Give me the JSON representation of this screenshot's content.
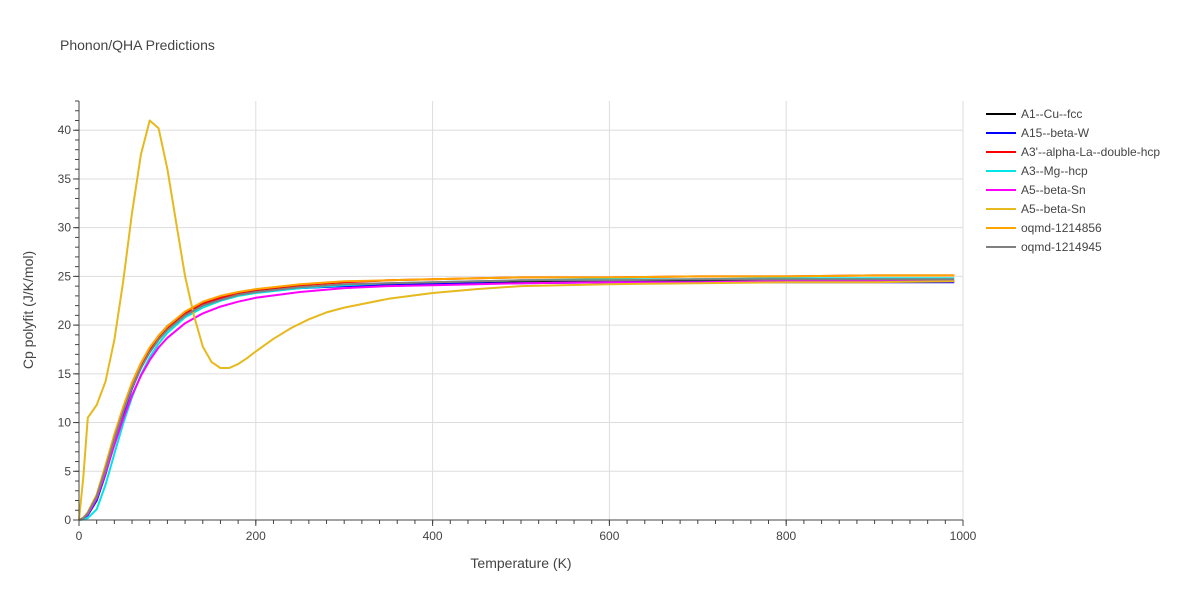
{
  "chart_data": {
    "type": "line",
    "title": "Phonon/QHA Predictions",
    "xlabel": "Temperature (K)",
    "ylabel": "Cp polyfit (J/K/mol)",
    "xlim": [
      0,
      1000
    ],
    "ylim": [
      0,
      43
    ],
    "x_ticks": [
      0,
      200,
      400,
      600,
      800,
      1000
    ],
    "y_ticks": [
      0,
      5,
      10,
      15,
      20,
      25,
      30,
      35,
      40
    ],
    "grid": true,
    "legend_position": "right",
    "series": [
      {
        "name": "A1--Cu--fcc",
        "color": "#000000",
        "x": [
          0,
          5,
          10,
          20,
          30,
          40,
          50,
          60,
          70,
          80,
          90,
          100,
          120,
          140,
          160,
          180,
          200,
          250,
          300,
          350,
          400,
          450,
          500,
          600,
          700,
          800,
          900,
          990
        ],
        "y": [
          0,
          0.2,
          0.6,
          2.3,
          5.1,
          8.3,
          11.3,
          13.9,
          16.0,
          17.6,
          18.9,
          19.9,
          21.3,
          22.2,
          22.8,
          23.2,
          23.5,
          23.9,
          24.1,
          24.2,
          24.3,
          24.4,
          24.4,
          24.5,
          24.5,
          24.5,
          24.5,
          24.5
        ]
      },
      {
        "name": "A15--beta-W",
        "color": "#0000ff",
        "x": [
          0,
          5,
          10,
          20,
          30,
          40,
          50,
          60,
          70,
          80,
          90,
          100,
          120,
          140,
          160,
          180,
          200,
          250,
          300,
          350,
          400,
          450,
          500,
          600,
          700,
          800,
          900,
          990
        ],
        "y": [
          0,
          0.15,
          0.5,
          2.0,
          4.7,
          7.9,
          10.9,
          13.5,
          15.6,
          17.3,
          18.6,
          19.6,
          21.1,
          22.1,
          22.7,
          23.1,
          23.4,
          23.8,
          24.0,
          24.1,
          24.2,
          24.3,
          24.3,
          24.4,
          24.4,
          24.4,
          24.4,
          24.4
        ]
      },
      {
        "name": "A3'--alpha-La--double-hcp",
        "color": "#ff0000",
        "x": [
          0,
          5,
          10,
          20,
          30,
          40,
          50,
          60,
          70,
          80,
          90,
          100,
          120,
          140,
          160,
          180,
          200,
          250,
          300,
          350,
          400,
          450,
          500,
          600,
          700,
          800,
          900,
          990
        ],
        "y": [
          0,
          0.2,
          0.7,
          2.5,
          5.4,
          8.5,
          11.3,
          13.8,
          15.8,
          17.4,
          18.7,
          19.7,
          21.2,
          22.2,
          22.8,
          23.3,
          23.6,
          24.1,
          24.4,
          24.6,
          24.7,
          24.8,
          24.9,
          24.9,
          25.0,
          25.0,
          25.1,
          25.1
        ]
      },
      {
        "name": "A3--Mg--hcp",
        "color": "#00e5e5",
        "x": [
          0,
          5,
          10,
          20,
          30,
          40,
          50,
          60,
          70,
          80,
          90,
          100,
          120,
          140,
          160,
          180,
          200,
          250,
          300,
          350,
          400,
          450,
          500,
          600,
          700,
          800,
          900,
          990
        ],
        "y": [
          0,
          0.05,
          0.2,
          1.1,
          3.6,
          6.8,
          9.9,
          12.6,
          14.9,
          16.7,
          18.1,
          19.2,
          20.8,
          21.8,
          22.5,
          23.0,
          23.3,
          23.8,
          24.1,
          24.3,
          24.4,
          24.5,
          24.6,
          24.7,
          24.7,
          24.8,
          24.8,
          24.8
        ]
      },
      {
        "name": "A5--beta-Sn",
        "color": "#ff00ff",
        "x": [
          0,
          5,
          10,
          20,
          30,
          40,
          50,
          60,
          70,
          80,
          90,
          100,
          120,
          140,
          160,
          180,
          200,
          250,
          300,
          350,
          400,
          450,
          500,
          600,
          700,
          800,
          900,
          990
        ],
        "y": [
          0,
          0.2,
          0.6,
          2.2,
          4.8,
          7.7,
          10.4,
          12.8,
          14.8,
          16.4,
          17.7,
          18.7,
          20.2,
          21.2,
          21.9,
          22.4,
          22.8,
          23.4,
          23.8,
          24.0,
          24.1,
          24.2,
          24.3,
          24.4,
          24.4,
          24.5,
          24.5,
          24.5
        ]
      },
      {
        "name": "A5--beta-Sn",
        "color": "#e6b91e",
        "x": [
          0,
          5,
          10,
          20,
          30,
          40,
          50,
          60,
          70,
          80,
          90,
          100,
          110,
          120,
          130,
          140,
          150,
          160,
          170,
          180,
          190,
          200,
          220,
          240,
          260,
          280,
          300,
          350,
          400,
          450,
          500,
          600,
          700,
          800,
          900,
          990
        ],
        "y": [
          0,
          4.5,
          10.5,
          11.8,
          14.2,
          18.5,
          24.5,
          31.5,
          37.5,
          41.0,
          40.2,
          36.0,
          30.5,
          25.0,
          21.0,
          17.8,
          16.2,
          15.6,
          15.6,
          16.0,
          16.6,
          17.3,
          18.6,
          19.7,
          20.6,
          21.3,
          21.8,
          22.7,
          23.3,
          23.7,
          24.0,
          24.2,
          24.3,
          24.4,
          24.4,
          24.5
        ]
      },
      {
        "name": "oqmd-1214856",
        "color": "#ffa500",
        "x": [
          0,
          5,
          10,
          20,
          30,
          40,
          50,
          60,
          70,
          80,
          90,
          100,
          120,
          140,
          160,
          180,
          200,
          250,
          300,
          350,
          400,
          450,
          500,
          600,
          700,
          800,
          900,
          990
        ],
        "y": [
          0,
          0.25,
          0.8,
          2.6,
          5.6,
          8.8,
          11.6,
          14.1,
          16.1,
          17.7,
          18.9,
          19.9,
          21.4,
          22.4,
          23.0,
          23.4,
          23.7,
          24.2,
          24.5,
          24.6,
          24.7,
          24.8,
          24.9,
          24.9,
          25.0,
          25.0,
          25.1,
          25.1
        ]
      },
      {
        "name": "oqmd-1214945",
        "color": "#808080",
        "x": [
          0,
          5,
          10,
          20,
          30,
          40,
          50,
          60,
          70,
          80,
          90,
          100,
          120,
          140,
          160,
          180,
          200,
          250,
          300,
          350,
          400,
          450,
          500,
          600,
          700,
          800,
          900,
          990
        ],
        "y": [
          0,
          0.2,
          0.7,
          2.4,
          5.2,
          8.3,
          11.1,
          13.6,
          15.6,
          17.2,
          18.5,
          19.5,
          21.0,
          22.0,
          22.6,
          23.1,
          23.4,
          23.9,
          24.2,
          24.3,
          24.4,
          24.5,
          24.6,
          24.6,
          24.7,
          24.7,
          24.7,
          24.7
        ]
      }
    ]
  }
}
